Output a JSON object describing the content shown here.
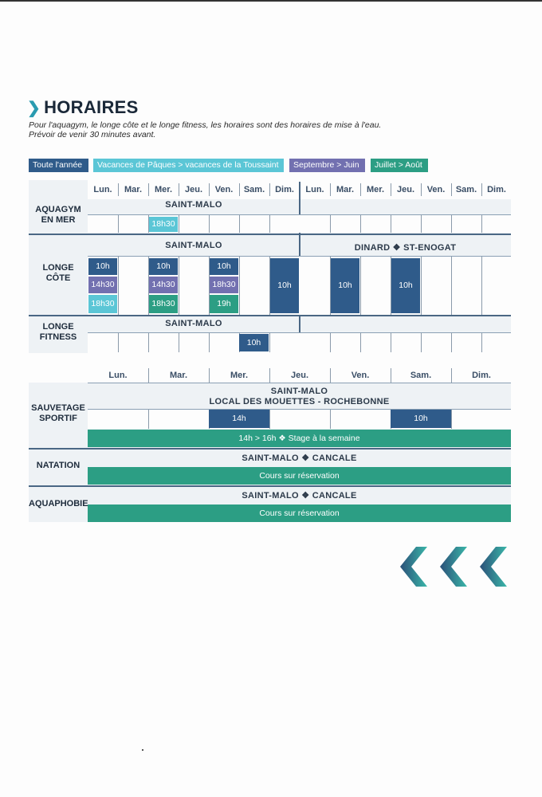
{
  "title": "HORAIRES",
  "intro": {
    "line1": "Pour l'aquagym, le longe côte et le longe fitness, les horaires sont des horaires de mise à l'eau.",
    "line2": "Prévoir de venir 30 minutes avant."
  },
  "legend": [
    "Toute l'année",
    "Vacances de Pâques > vacances de la Toussaint",
    "Septembre > Juin",
    "Juillet > Août"
  ],
  "colors": {
    "toute_annee": "#2f5b8a",
    "vacances": "#5bc6d6",
    "septembre_juin": "#7270b0",
    "juillet_aout": "#2c9e84"
  },
  "table1": {
    "days_left": [
      "Lun.",
      "Mar.",
      "Mer.",
      "Jeu.",
      "Ven.",
      "Sam.",
      "Dim."
    ],
    "days_right": [
      "Lun.",
      "Mar.",
      "Mer.",
      "Jeu.",
      "Ven.",
      "Sam.",
      "Dim."
    ],
    "aquagym": {
      "label": [
        "AQUAGYM",
        "EN MER"
      ],
      "place": "SAINT-MALO",
      "slot": "18h30"
    },
    "longe_cote": {
      "label": [
        "LONGE",
        "CÔTE"
      ],
      "place_left": "SAINT-MALO",
      "place_right": "DINARD ❖ ST-ENOGAT",
      "lun": [
        "10h",
        "14h30",
        "18h30"
      ],
      "mer": [
        "10h",
        "14h30",
        "18h30"
      ],
      "ven": [
        "10h",
        "18h30",
        "19h"
      ],
      "dim": "10h",
      "mar_r": "10h",
      "jeu_r": "10h"
    },
    "longe_fitness": {
      "label": [
        "LONGE",
        "FITNESS"
      ],
      "place": "SAINT-MALO",
      "slot": "10h"
    }
  },
  "table2": {
    "days": [
      "Lun.",
      "Mar.",
      "Mer.",
      "Jeu.",
      "Ven.",
      "Sam.",
      "Dim."
    ],
    "sauvetage": {
      "label": [
        "SAUVETAGE",
        "SPORTIF"
      ],
      "place": [
        "SAINT-MALO",
        "LOCAL DES MOUETTES - ROCHEBONNE"
      ],
      "slot_mer": "14h",
      "slot_sam": "10h",
      "stage": "14h > 16h ❖ Stage à la semaine"
    },
    "natation": {
      "label": "NATATION",
      "place": "SAINT-MALO ❖ CANCALE",
      "bar": "Cours sur réservation"
    },
    "aquaphobie": {
      "label": "AQUAPHOBIE",
      "place": "SAINT-MALO ❖ CANCALE",
      "bar": "Cours sur réservation"
    }
  },
  "icons": [
    "chevron-right-icon",
    "chevron-left-icon"
  ]
}
